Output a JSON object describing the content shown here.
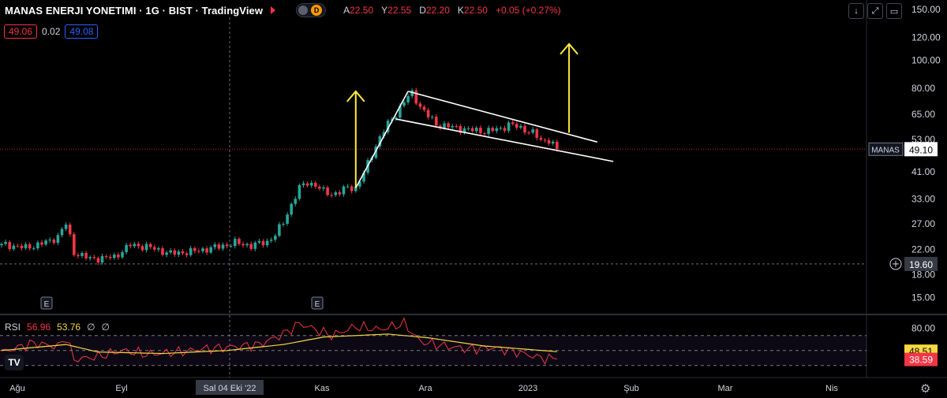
{
  "header": {
    "title": "MANAS ENERJI YONETIMI · 1G · BIST · TradingView",
    "toggle_letter": "D",
    "ohlc": [
      {
        "k": "A",
        "v": "22.50"
      },
      {
        "k": "Y",
        "v": "22.55"
      },
      {
        "k": "D",
        "v": "22.20"
      },
      {
        "k": "K",
        "v": "22.50"
      },
      {
        "k": "",
        "v": "+0.05 (+0.27%)"
      }
    ]
  },
  "price_boxes": {
    "bid": "49.06",
    "spread": "0.02",
    "ask": "49.08"
  },
  "toolbar": {
    "down_icon": "↓",
    "expand_icon": "⤢",
    "screen_icon": "▭"
  },
  "rsi_header": {
    "label": "RSI",
    "value": "56.96",
    "ma_value": "53.76",
    "extra1": "∅",
    "extra2": "∅"
  },
  "logo_text": "TV",
  "chart_data": {
    "type": "candlestick",
    "symbol": "MANAS",
    "scale": "log",
    "y_ticks": [
      "150.00",
      "120.00",
      "100.00",
      "80.00",
      "65.00",
      "53.00",
      "41.00",
      "33.00",
      "27.00",
      "22.00",
      "18.00",
      "15.00"
    ],
    "y_tick_values": [
      150,
      120,
      100,
      80,
      65,
      53,
      41,
      33,
      27,
      22,
      18,
      15
    ],
    "ylim": [
      13.5,
      158
    ],
    "last_price": {
      "label": "MANAS",
      "value": "49.10",
      "price": 49.1
    },
    "crosshair_price": {
      "value": "19.60",
      "price": 19.6
    },
    "x_labels": [
      "Ağu",
      "Eyl",
      "Sal 04 Eki '22",
      "Kas",
      "Ara",
      "2023",
      "Şub",
      "Mar",
      "Nis"
    ],
    "earnings_markers": [
      "E",
      "E"
    ],
    "anchors": [
      [
        0,
        23
      ],
      [
        6,
        22.3
      ],
      [
        12,
        23.5
      ],
      [
        14,
        24.5
      ],
      [
        16,
        27
      ],
      [
        18,
        21.5
      ],
      [
        22,
        20.4
      ],
      [
        28,
        20.7
      ],
      [
        32,
        22.8
      ],
      [
        36,
        22.5
      ],
      [
        42,
        21.3
      ],
      [
        48,
        21.7
      ],
      [
        54,
        22.5
      ],
      [
        58,
        23.2
      ],
      [
        62,
        22.7
      ],
      [
        66,
        23.4
      ],
      [
        68,
        24.8
      ],
      [
        70,
        27.3
      ],
      [
        72,
        31.5
      ],
      [
        74,
        36
      ],
      [
        76,
        37.6
      ],
      [
        78,
        36.8
      ],
      [
        80,
        35
      ],
      [
        82,
        34.3
      ],
      [
        84,
        34.8
      ],
      [
        86,
        36.2
      ],
      [
        88,
        36
      ],
      [
        90,
        40.5
      ],
      [
        92,
        47
      ],
      [
        94,
        54
      ],
      [
        96,
        60
      ],
      [
        98,
        65
      ],
      [
        100,
        72
      ],
      [
        102,
        77
      ],
      [
        104,
        69
      ],
      [
        106,
        64
      ],
      [
        108,
        60
      ],
      [
        112,
        58.5
      ],
      [
        116,
        57.4
      ],
      [
        120,
        56.6
      ],
      [
        124,
        57.8
      ],
      [
        126,
        60
      ],
      [
        128,
        58.8
      ],
      [
        132,
        56
      ],
      [
        134,
        52.5
      ],
      [
        136,
        53
      ],
      [
        138,
        49.1
      ]
    ],
    "patterns": {
      "pole": [
        [
          88,
          36
        ],
        [
          101,
          78
        ]
      ],
      "flag_upper": [
        [
          101,
          78
        ],
        [
          148,
          52
        ]
      ],
      "flag_lower": [
        [
          98,
          62.5
        ],
        [
          152,
          44.5
        ]
      ],
      "arrows": [
        {
          "x": 88,
          "from": 36,
          "to": 78
        },
        {
          "x": 141,
          "from": 56,
          "to": 114
        }
      ]
    },
    "rsi": {
      "ticks": [
        "80.00"
      ],
      "last": {
        "rsi": "38.59",
        "ma": "48.51",
        "rsi_val": 38.59,
        "ma_val": 48.51
      },
      "levels": {
        "upper": 70,
        "middle": 50,
        "lower": 30
      },
      "ylim": [
        15,
        95
      ],
      "anchors": [
        [
          0,
          48
        ],
        [
          8,
          60
        ],
        [
          14,
          55
        ],
        [
          16,
          68
        ],
        [
          18,
          38
        ],
        [
          24,
          42
        ],
        [
          30,
          50
        ],
        [
          36,
          45
        ],
        [
          44,
          48
        ],
        [
          50,
          52
        ],
        [
          58,
          55
        ],
        [
          64,
          58
        ],
        [
          70,
          72
        ],
        [
          74,
          86
        ],
        [
          78,
          78
        ],
        [
          82,
          70
        ],
        [
          88,
          82
        ],
        [
          94,
          78
        ],
        [
          100,
          86
        ],
        [
          104,
          62
        ],
        [
          110,
          56
        ],
        [
          116,
          52
        ],
        [
          122,
          54
        ],
        [
          128,
          48
        ],
        [
          134,
          40
        ],
        [
          138,
          38.59
        ]
      ],
      "ma_anchors": [
        [
          0,
          50
        ],
        [
          16,
          58
        ],
        [
          24,
          48
        ],
        [
          40,
          46
        ],
        [
          56,
          50
        ],
        [
          70,
          58
        ],
        [
          80,
          68
        ],
        [
          96,
          72
        ],
        [
          106,
          67
        ],
        [
          120,
          56
        ],
        [
          138,
          48.51
        ]
      ]
    }
  }
}
